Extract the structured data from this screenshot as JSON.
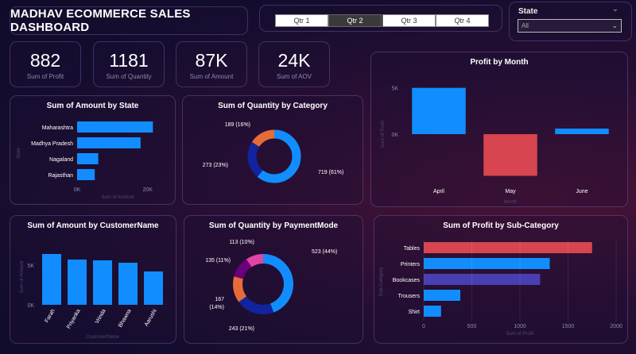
{
  "header": {
    "title": "MADHAV ECOMMERCE SALES DASHBOARD"
  },
  "quarter_slicer": {
    "options": [
      "Qtr 1",
      "Qtr 2",
      "Qtr 3",
      "Qtr 4"
    ],
    "selected": "Qtr 2"
  },
  "state_slicer": {
    "label": "State",
    "value": "All"
  },
  "kpis": [
    {
      "value": "882",
      "label": "Sum of Profit"
    },
    {
      "value": "1181",
      "label": "Sum of Quantity"
    },
    {
      "value": "87K",
      "label": "Sum of Amount"
    },
    {
      "value": "24K",
      "label": "Sum of AOV"
    }
  ],
  "colors": {
    "blue": "#118dff",
    "navy": "#12239e",
    "orange": "#e66c37",
    "purple": "#6b007b",
    "magenta": "#e044a7",
    "red": "#d64550",
    "indigo": "#4a3fb0"
  },
  "chart_data": [
    {
      "id": "amount_by_state",
      "type": "bar",
      "orientation": "horizontal",
      "title": "Sum of Amount by State",
      "categories": [
        "Maharashtra",
        "Madhya Pradesh",
        "Nagaland",
        "Rajasthan"
      ],
      "values": [
        21500,
        18000,
        6000,
        5000
      ],
      "ticks": [
        0,
        20000
      ],
      "tick_labels": [
        "0K",
        "20K"
      ],
      "xlim": [
        0,
        23000
      ],
      "xlabel": "Sum of Amount",
      "ylabel": "State"
    },
    {
      "id": "quantity_by_category",
      "type": "pie",
      "donut": true,
      "title": "Sum of Quantity by Category",
      "series": [
        {
          "label": "719 (61%)",
          "value": 719,
          "color": "#118dff"
        },
        {
          "label": "273 (23%)",
          "value": 273,
          "color": "#12239e"
        },
        {
          "label": "189 (16%)",
          "value": 189,
          "color": "#e66c37"
        }
      ]
    },
    {
      "id": "profit_by_month",
      "type": "bar",
      "title": "Profit by Month",
      "categories": [
        "April",
        "May",
        "June"
      ],
      "values": [
        5000,
        -4500,
        600
      ],
      "colors": [
        "#118dff",
        "#d64550",
        "#118dff"
      ],
      "ticks": [
        0,
        5000
      ],
      "tick_labels": [
        "0K",
        "5K"
      ],
      "ylim": [
        -6000,
        6000
      ],
      "xlabel": "Month",
      "ylabel": "Sum of Profit"
    },
    {
      "id": "amount_by_customer",
      "type": "bar",
      "title": "Sum of Amount by CustomerName",
      "categories": [
        "Farah",
        "Priyanka",
        "Vrinda",
        "Bhawna",
        "Aarushi"
      ],
      "values": [
        6400,
        5700,
        5600,
        5300,
        4200
      ],
      "ticks": [
        0,
        5000
      ],
      "tick_labels": [
        "0K",
        "5K"
      ],
      "ylim": [
        0,
        7000
      ],
      "xlabel": "CustomerName",
      "ylabel": "Sum of Amount"
    },
    {
      "id": "quantity_by_paymentmode",
      "type": "pie",
      "donut": true,
      "title": "Sum of Quantity by PaymentMode",
      "series": [
        {
          "label": "523 (44%)",
          "value": 523,
          "color": "#118dff"
        },
        {
          "label": "243 (21%)",
          "value": 243,
          "color": "#12239e"
        },
        {
          "label": "167",
          "label2": "(14%)",
          "value": 167,
          "color": "#e66c37"
        },
        {
          "label": "135 (11%)",
          "value": 135,
          "color": "#6b007b"
        },
        {
          "label": "113 (10%)",
          "value": 113,
          "color": "#e044a7"
        }
      ]
    },
    {
      "id": "profit_by_subcategory",
      "type": "bar",
      "orientation": "horizontal",
      "title": "Sum of Profit by Sub-Category",
      "categories": [
        "Tables",
        "Printers",
        "Bookcases",
        "Trousers",
        "Shirt"
      ],
      "values": [
        1750,
        1310,
        1210,
        380,
        180
      ],
      "colors": [
        "#d64550",
        "#118dff",
        "#4a3fb0",
        "#118dff",
        "#118dff"
      ],
      "ticks": [
        0,
        500,
        1000,
        1500,
        2000
      ],
      "tick_labels": [
        "0",
        "500",
        "1000",
        "1500",
        "2000"
      ],
      "xlim": [
        0,
        2000
      ],
      "xlabel": "Sum of Profit",
      "ylabel": "Sub-Category"
    }
  ]
}
